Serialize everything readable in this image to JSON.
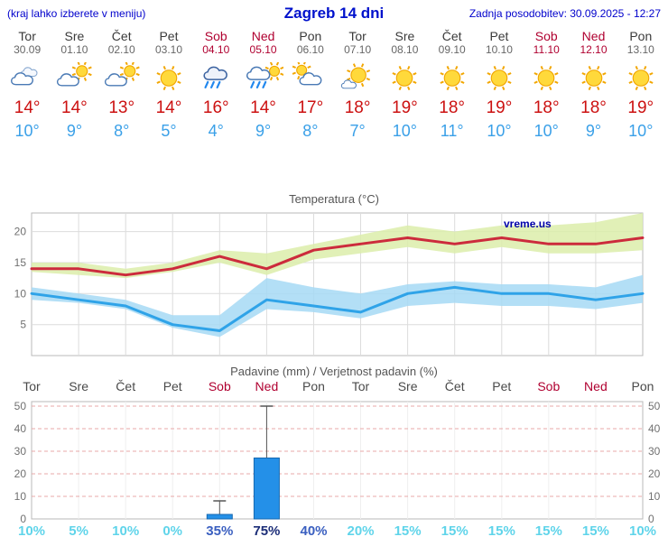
{
  "header": {
    "left_note": "(kraj lahko izberete v meniju)",
    "title": "Zagreb 14 dni",
    "last_update": "Zadnja posodobitev: 30.09.2025 - 12:27"
  },
  "colors": {
    "header_text": "#0000cc",
    "high_temp": "#cc1111",
    "low_temp": "#3aa0e8",
    "weekend": "#b00030",
    "weekday": "#3a3a3a",
    "bar_fill": "#2490e8",
    "bar_stroke": "#1668b0",
    "pct_low": "#5fd4ea",
    "pct_mid": "#3a5fc0",
    "pct_high": "#1c2e78",
    "watermark": "#0000aa",
    "grid": "#dcdcdc",
    "precip_grid": "#e8a8a8"
  },
  "forecast": {
    "days": [
      {
        "name": "Tor",
        "date": "30.09",
        "weekend": false,
        "icon": "cloudy",
        "high": "14°",
        "low": "10°"
      },
      {
        "name": "Sre",
        "date": "01.10",
        "weekend": false,
        "icon": "partly-sunny",
        "high": "14°",
        "low": "9°"
      },
      {
        "name": "Čet",
        "date": "02.10",
        "weekend": false,
        "icon": "partly-sunny",
        "high": "13°",
        "low": "8°"
      },
      {
        "name": "Pet",
        "date": "03.10",
        "weekend": false,
        "icon": "sunny",
        "high": "14°",
        "low": "5°"
      },
      {
        "name": "Sob",
        "date": "04.10",
        "weekend": true,
        "icon": "rain",
        "high": "16°",
        "low": "4°"
      },
      {
        "name": "Ned",
        "date": "05.10",
        "weekend": true,
        "icon": "sun-rain",
        "high": "14°",
        "low": "9°"
      },
      {
        "name": "Pon",
        "date": "06.10",
        "weekend": false,
        "icon": "cloud-sun",
        "high": "17°",
        "low": "8°"
      },
      {
        "name": "Tor",
        "date": "07.10",
        "weekend": false,
        "icon": "mostly-sunny",
        "high": "18°",
        "low": "7°"
      },
      {
        "name": "Sre",
        "date": "08.10",
        "weekend": false,
        "icon": "sunny",
        "high": "19°",
        "low": "10°"
      },
      {
        "name": "Čet",
        "date": "09.10",
        "weekend": false,
        "icon": "sunny",
        "high": "18°",
        "low": "11°"
      },
      {
        "name": "Pet",
        "date": "10.10",
        "weekend": false,
        "icon": "sunny",
        "high": "19°",
        "low": "10°"
      },
      {
        "name": "Sob",
        "date": "11.10",
        "weekend": true,
        "icon": "sunny",
        "high": "18°",
        "low": "10°"
      },
      {
        "name": "Ned",
        "date": "12.10",
        "weekend": true,
        "icon": "sunny",
        "high": "18°",
        "low": "9°"
      },
      {
        "name": "Pon",
        "date": "13.10",
        "weekend": false,
        "icon": "sunny",
        "high": "19°",
        "low": "10°"
      }
    ]
  },
  "chart_data": [
    {
      "type": "line",
      "title": "Temperatura (°C)",
      "watermark": "vreme.us",
      "ylim": [
        0,
        23
      ],
      "yticks": [
        5,
        10,
        15,
        20
      ],
      "x_count": 14,
      "series": [
        {
          "name": "max-temp",
          "color": "#cc2b3c",
          "band_color": "#dcedaa",
          "values": [
            14,
            14,
            13,
            14,
            16,
            14,
            17,
            18,
            19,
            18,
            19,
            18,
            18,
            19
          ],
          "band_upper": [
            15,
            15,
            14,
            15,
            17,
            16.5,
            18,
            19.5,
            21,
            20,
            21,
            21,
            21.5,
            23
          ],
          "band_lower": [
            13.5,
            13,
            12.5,
            13.5,
            15,
            13,
            15.5,
            16.5,
            17.5,
            16.5,
            17.5,
            16.5,
            16.5,
            17
          ]
        },
        {
          "name": "min-temp",
          "color": "#2fa3e8",
          "band_color": "#a6d9f5",
          "values": [
            10,
            9,
            8,
            5,
            4,
            9,
            8,
            7,
            10,
            11,
            10,
            10,
            9,
            10
          ],
          "band_upper": [
            11,
            10,
            9,
            6.5,
            6.5,
            12.5,
            11,
            10,
            11.5,
            12,
            11.5,
            11.5,
            11,
            13
          ],
          "band_lower": [
            9,
            8.5,
            7.5,
            4.5,
            3,
            7.5,
            7,
            6,
            8,
            8.5,
            8,
            8,
            7.5,
            8.5
          ]
        }
      ]
    },
    {
      "type": "bar",
      "title": "Padavine (mm) / Verjetnost padavin (%)",
      "categories": [
        "Tor",
        "Sre",
        "Čet",
        "Pet",
        "Sob",
        "Ned",
        "Pon",
        "Tor",
        "Sre",
        "Čet",
        "Pet",
        "Sob",
        "Ned",
        "Pon"
      ],
      "weekend_flags": [
        false,
        false,
        false,
        false,
        true,
        true,
        false,
        false,
        false,
        false,
        false,
        true,
        true,
        false
      ],
      "values": [
        0,
        0,
        0,
        0,
        2,
        27,
        0,
        0,
        0,
        0,
        0,
        0,
        0,
        0
      ],
      "whiskers": [
        0,
        0,
        0,
        0,
        8,
        50,
        0,
        0,
        0,
        0,
        0,
        0,
        0,
        0
      ],
      "probabilities": [
        "10%",
        "5%",
        "10%",
        "0%",
        "35%",
        "75%",
        "40%",
        "20%",
        "15%",
        "15%",
        "15%",
        "15%",
        "15%",
        "10%"
      ],
      "ylim": [
        0,
        52
      ],
      "yticks": [
        0,
        10,
        20,
        30,
        40,
        50
      ]
    }
  ]
}
